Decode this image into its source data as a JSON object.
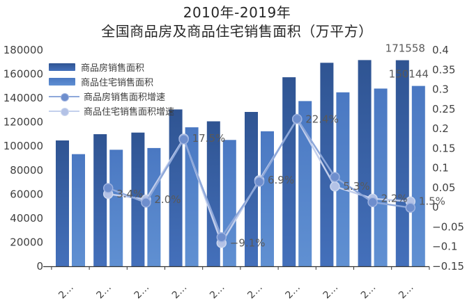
{
  "title": {
    "line1": "2010年-2019年",
    "line2": "全国商品房及商品住宅销售面积（万平方）"
  },
  "chart_data": {
    "type": "bar+line combo",
    "x_tick_labels": [
      "2…",
      "2…",
      "2…",
      "2…",
      "2…",
      "2…",
      "2…",
      "2…",
      "2…",
      "2…"
    ],
    "left_axis": {
      "min": 0,
      "max": 180000,
      "step": 20000,
      "ticks": [
        "180000",
        "160000",
        "140000",
        "120000",
        "100000",
        "80000",
        "60000",
        "40000",
        "20000",
        "0"
      ]
    },
    "right_axis": {
      "min": -0.15,
      "max": 0.4,
      "step": 0.05,
      "ticks": [
        "0.4",
        "0.35",
        "0.3",
        "0.25",
        "0.2",
        "0.15",
        "0.1",
        "0.05",
        "0",
        "−0.05",
        "−0.1",
        "−0.15"
      ]
    },
    "bar_series": [
      {
        "name": "商品房销售面积",
        "color_top": "#2f5492",
        "color_bottom": "#4470bb",
        "values": [
          104765,
          109946,
          111304,
          130551,
          120649,
          128495,
          157349,
          169408,
          171654,
          171558
        ],
        "last_value_label": "171558"
      },
      {
        "name": "商品住宅销售面积",
        "color_top": "#4a78c2",
        "color_bottom": "#6090d2",
        "values": [
          93377,
          97030,
          98468,
          115723,
          105182,
          112406,
          137540,
          144789,
          147929,
          150144
        ],
        "last_value_label": "150144"
      }
    ],
    "line_series": [
      {
        "name": "商品房销售面积增速",
        "line_color": "#8ea8da",
        "marker_fill": "#6e8ecd",
        "marker_stroke": "#9fb3e0",
        "values": [
          null,
          0.049,
          0.012,
          0.173,
          -0.076,
          0.065,
          0.225,
          0.077,
          0.013,
          -0.001
        ],
        "point_labels": [
          null,
          null,
          null,
          null,
          null,
          null,
          null,
          null,
          null,
          null
        ]
      },
      {
        "name": "商品住宅销售面积增速",
        "line_color": "#c3cfec",
        "marker_fill": "#b3c2e6",
        "marker_stroke": "#cdd8ef",
        "values": [
          null,
          0.034,
          0.02,
          0.175,
          -0.091,
          0.069,
          0.224,
          0.053,
          0.022,
          0.015
        ],
        "point_labels": [
          null,
          "3.4%",
          "2.0%",
          "17.5%",
          "−9.1%",
          "6.9%",
          "22.4%",
          "5.3%",
          "2.2%",
          "1.5%"
        ]
      }
    ],
    "label_color": "#595959",
    "axis_label_color": "#404040",
    "axis_line_color": "#333333"
  }
}
